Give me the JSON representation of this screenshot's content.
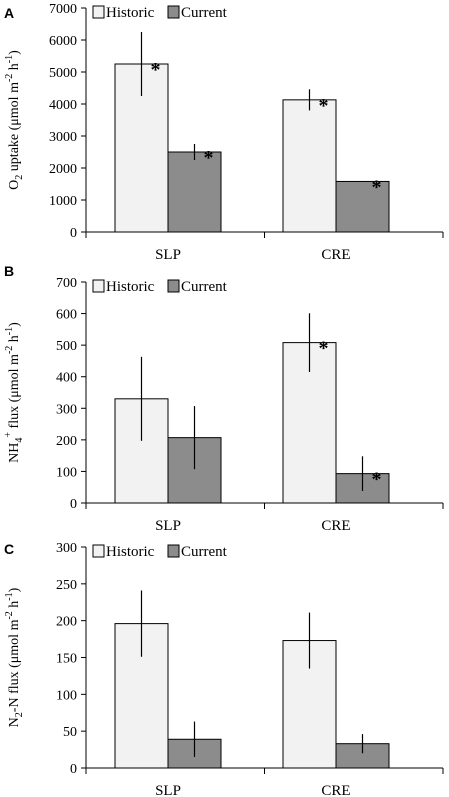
{
  "colors": {
    "historic": "#f2f2f2",
    "current": "#8c8c8c",
    "stroke": "#000000"
  },
  "chart_data": [
    {
      "type": "bar",
      "panel": "A",
      "categories": [
        "SLP",
        "CRE"
      ],
      "ylabel": {
        "base": "O",
        "sub1": "2",
        "text1": " uptake (μmol m",
        "sup1": "-2",
        "text2": " h",
        "sup2": "-1",
        "text3": ")"
      },
      "ylim": [
        0,
        7000
      ],
      "yticks": [
        0,
        1000,
        2000,
        3000,
        4000,
        5000,
        6000,
        7000
      ],
      "legend": "top-left",
      "series": [
        {
          "name": "Historic",
          "values": [
            5250,
            4130
          ],
          "errors": [
            1000,
            330
          ],
          "significant": [
            true,
            true
          ]
        },
        {
          "name": "Current",
          "values": [
            2500,
            1580
          ],
          "errors": [
            250,
            0
          ],
          "significant": [
            true,
            true
          ]
        }
      ]
    },
    {
      "type": "bar",
      "panel": "B",
      "categories": [
        "SLP",
        "CRE"
      ],
      "ylabel": {
        "base": "NH",
        "sub1": "4",
        "sup0": "+",
        "text1": " flux (μmol m",
        "sup1": "-2",
        "text2": " h",
        "sup2": "-1",
        "text3": ")"
      },
      "ylim": [
        0,
        700
      ],
      "yticks": [
        0,
        100,
        200,
        300,
        400,
        500,
        600,
        700
      ],
      "legend": "top-left",
      "series": [
        {
          "name": "Historic",
          "values": [
            330,
            508
          ],
          "errors": [
            133,
            93
          ],
          "significant": [
            false,
            true
          ]
        },
        {
          "name": "Current",
          "values": [
            207,
            93
          ],
          "errors": [
            100,
            55
          ],
          "significant": [
            false,
            true
          ]
        }
      ]
    },
    {
      "type": "bar",
      "panel": "C",
      "categories": [
        "SLP",
        "CRE"
      ],
      "ylabel": {
        "base": "N",
        "sub1": "2",
        "text1": "-N flux (μmol m",
        "sup1": "-2",
        "text2": " h",
        "sup2": "-1",
        "text3": ")"
      },
      "ylim": [
        0,
        300
      ],
      "yticks": [
        0,
        50,
        100,
        150,
        200,
        250,
        300
      ],
      "legend": "top-left",
      "series": [
        {
          "name": "Historic",
          "values": [
            196,
            173
          ],
          "errors": [
            45,
            38
          ],
          "significant": [
            false,
            false
          ]
        },
        {
          "name": "Current",
          "values": [
            39,
            33
          ],
          "errors": [
            24,
            13
          ],
          "significant": [
            false,
            false
          ]
        }
      ]
    }
  ]
}
